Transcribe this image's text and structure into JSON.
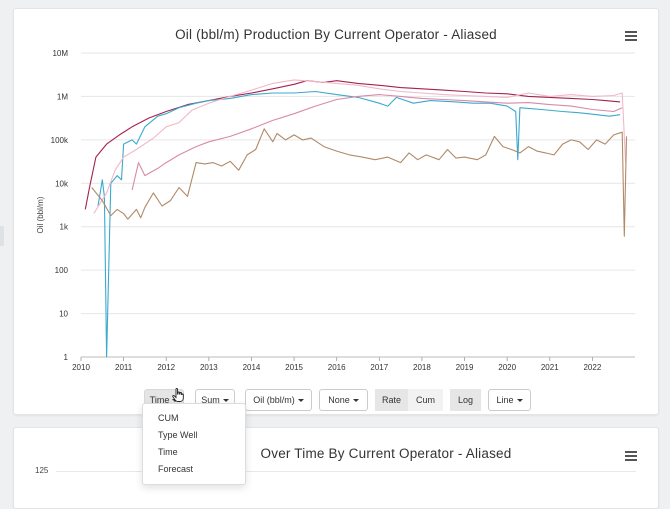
{
  "chart1": {
    "title": "Oil (bbl/m) Production By Current Operator - Aliased",
    "chart_data": {
      "type": "line",
      "title": "Oil (bbl/m) Production By Current Operator - Aliased",
      "ylabel": "Oil (bbl/m)",
      "xlabel": "",
      "yscale": "log",
      "ylim": [
        1,
        10000000
      ],
      "xlim": [
        2010,
        2023
      ],
      "y_ticks": [
        "1",
        "10",
        "100",
        "1k",
        "10k",
        "100k",
        "1M",
        "10M"
      ],
      "x_ticks": [
        "2010",
        "2011",
        "2012",
        "2013",
        "2014",
        "2015",
        "2016",
        "2017",
        "2018",
        "2019",
        "2020",
        "2021",
        "2022"
      ],
      "grid": true,
      "legend": "none",
      "series": [
        {
          "color": "#a3234e",
          "points": [
            [
              2010.1,
              2500
            ],
            [
              2010.2,
              8000
            ],
            [
              2010.35,
              40000
            ],
            [
              2010.6,
              80000
            ],
            [
              2010.9,
              130000
            ],
            [
              2011.2,
              200000
            ],
            [
              2011.6,
              320000
            ],
            [
              2012.0,
              450000
            ],
            [
              2012.5,
              650000
            ],
            [
              2013.0,
              800000
            ],
            [
              2013.5,
              1000000
            ],
            [
              2014.0,
              1200000
            ],
            [
              2014.5,
              1500000
            ],
            [
              2015.0,
              1900000
            ],
            [
              2015.3,
              2300000
            ],
            [
              2015.7,
              2100000
            ],
            [
              2016.0,
              2300000
            ],
            [
              2016.5,
              2000000
            ],
            [
              2017.0,
              1800000
            ],
            [
              2017.5,
              1600000
            ],
            [
              2018.0,
              1500000
            ],
            [
              2018.5,
              1400000
            ],
            [
              2019.0,
              1300000
            ],
            [
              2019.5,
              1200000
            ],
            [
              2020.0,
              1150000
            ],
            [
              2020.5,
              1000000
            ],
            [
              2021.0,
              950000
            ],
            [
              2021.5,
              900000
            ],
            [
              2022.0,
              850000
            ],
            [
              2022.3,
              800000
            ],
            [
              2022.65,
              750000
            ]
          ]
        },
        {
          "color": "#3ba9cc",
          "points": [
            [
              2010.4,
              3000
            ],
            [
              2010.5,
              12000
            ],
            [
              2010.55,
              5000
            ],
            [
              2010.6,
              1
            ],
            [
              2010.7,
              10000
            ],
            [
              2010.85,
              15000
            ],
            [
              2010.95,
              12000
            ],
            [
              2011.0,
              80000
            ],
            [
              2011.2,
              100000
            ],
            [
              2011.3,
              80000
            ],
            [
              2011.5,
              200000
            ],
            [
              2011.8,
              350000
            ],
            [
              2012.0,
              400000
            ],
            [
              2012.3,
              550000
            ],
            [
              2012.7,
              700000
            ],
            [
              2013.0,
              800000
            ],
            [
              2013.5,
              900000
            ],
            [
              2014.0,
              1100000
            ],
            [
              2014.5,
              1200000
            ],
            [
              2015.0,
              1200000
            ],
            [
              2015.5,
              1300000
            ],
            [
              2016.0,
              1100000
            ],
            [
              2016.5,
              950000
            ],
            [
              2017.0,
              700000
            ],
            [
              2017.2,
              600000
            ],
            [
              2017.4,
              950000
            ],
            [
              2017.8,
              700000
            ],
            [
              2018.2,
              800000
            ],
            [
              2018.8,
              750000
            ],
            [
              2019.2,
              700000
            ],
            [
              2019.6,
              700000
            ],
            [
              2020.0,
              600000
            ],
            [
              2020.2,
              450000
            ],
            [
              2020.25,
              35000
            ],
            [
              2020.3,
              550000
            ],
            [
              2020.8,
              500000
            ],
            [
              2021.3,
              450000
            ],
            [
              2021.7,
              420000
            ],
            [
              2022.0,
              390000
            ],
            [
              2022.4,
              350000
            ],
            [
              2022.65,
              380000
            ]
          ]
        },
        {
          "color": "#f1b8c8",
          "points": [
            [
              2010.3,
              2000
            ],
            [
              2010.6,
              6000
            ],
            [
              2010.8,
              20000
            ],
            [
              2011.0,
              40000
            ],
            [
              2011.3,
              60000
            ],
            [
              2011.7,
              110000
            ],
            [
              2012.0,
              200000
            ],
            [
              2012.3,
              250000
            ],
            [
              2012.6,
              480000
            ],
            [
              2013.0,
              700000
            ],
            [
              2013.5,
              1000000
            ],
            [
              2014.0,
              1400000
            ],
            [
              2014.5,
              2000000
            ],
            [
              2015.0,
              2400000
            ],
            [
              2015.5,
              2200000
            ],
            [
              2016.0,
              2000000
            ],
            [
              2016.5,
              1800000
            ],
            [
              2017.0,
              1500000
            ],
            [
              2017.5,
              1300000
            ],
            [
              2018.0,
              1200000
            ],
            [
              2018.5,
              1100000
            ],
            [
              2019.0,
              1050000
            ],
            [
              2019.5,
              1000000
            ],
            [
              2020.0,
              950000
            ],
            [
              2020.5,
              1200000
            ],
            [
              2021.0,
              1000000
            ],
            [
              2021.5,
              1100000
            ],
            [
              2022.0,
              1000000
            ],
            [
              2022.5,
              1050000
            ],
            [
              2022.7,
              1200000
            ],
            [
              2022.78,
              30000
            ]
          ]
        },
        {
          "color": "#d88aa8",
          "points": [
            [
              2011.2,
              7000
            ],
            [
              2011.35,
              30000
            ],
            [
              2011.5,
              15000
            ],
            [
              2011.8,
              22000
            ],
            [
              2012.0,
              30000
            ],
            [
              2012.3,
              45000
            ],
            [
              2012.7,
              70000
            ],
            [
              2013.0,
              90000
            ],
            [
              2013.5,
              120000
            ],
            [
              2014.0,
              180000
            ],
            [
              2014.5,
              280000
            ],
            [
              2015.0,
              400000
            ],
            [
              2015.5,
              600000
            ],
            [
              2016.0,
              850000
            ],
            [
              2016.5,
              1000000
            ],
            [
              2017.0,
              1100000
            ],
            [
              2017.5,
              1000000
            ],
            [
              2018.0,
              900000
            ],
            [
              2018.5,
              850000
            ],
            [
              2019.0,
              800000
            ],
            [
              2019.5,
              750000
            ],
            [
              2020.0,
              700000
            ],
            [
              2020.5,
              720000
            ],
            [
              2021.0,
              650000
            ],
            [
              2021.5,
              600000
            ],
            [
              2022.0,
              500000
            ],
            [
              2022.5,
              450000
            ],
            [
              2022.7,
              550000
            ]
          ]
        },
        {
          "color": "#b08a68",
          "points": [
            [
              2010.25,
              8000
            ],
            [
              2010.5,
              4000
            ],
            [
              2010.7,
              1800
            ],
            [
              2010.85,
              2500
            ],
            [
              2011.0,
              2000
            ],
            [
              2011.1,
              1500
            ],
            [
              2011.3,
              2500
            ],
            [
              2011.4,
              1600
            ],
            [
              2011.5,
              2800
            ],
            [
              2011.7,
              6000
            ],
            [
              2011.9,
              3000
            ],
            [
              2012.1,
              4000
            ],
            [
              2012.3,
              8000
            ],
            [
              2012.5,
              5000
            ],
            [
              2012.7,
              30000
            ],
            [
              2012.9,
              28000
            ],
            [
              2013.1,
              30000
            ],
            [
              2013.3,
              25000
            ],
            [
              2013.5,
              32000
            ],
            [
              2013.7,
              20000
            ],
            [
              2013.9,
              45000
            ],
            [
              2014.1,
              60000
            ],
            [
              2014.3,
              180000
            ],
            [
              2014.5,
              90000
            ],
            [
              2014.6,
              140000
            ],
            [
              2014.8,
              100000
            ],
            [
              2015.0,
              130000
            ],
            [
              2015.2,
              100000
            ],
            [
              2015.4,
              110000
            ],
            [
              2015.7,
              70000
            ],
            [
              2016.0,
              55000
            ],
            [
              2016.3,
              45000
            ],
            [
              2016.6,
              40000
            ],
            [
              2016.9,
              35000
            ],
            [
              2017.2,
              40000
            ],
            [
              2017.5,
              30000
            ],
            [
              2017.7,
              50000
            ],
            [
              2017.9,
              35000
            ],
            [
              2018.1,
              45000
            ],
            [
              2018.4,
              35000
            ],
            [
              2018.6,
              60000
            ],
            [
              2018.8,
              38000
            ],
            [
              2019.0,
              40000
            ],
            [
              2019.3,
              35000
            ],
            [
              2019.5,
              45000
            ],
            [
              2019.7,
              120000
            ],
            [
              2019.9,
              70000
            ],
            [
              2020.1,
              60000
            ],
            [
              2020.3,
              50000
            ],
            [
              2020.5,
              70000
            ],
            [
              2020.7,
              55000
            ],
            [
              2020.9,
              50000
            ],
            [
              2021.1,
              45000
            ],
            [
              2021.3,
              80000
            ],
            [
              2021.5,
              100000
            ],
            [
              2021.7,
              90000
            ],
            [
              2021.9,
              60000
            ],
            [
              2022.1,
              100000
            ],
            [
              2022.3,
              80000
            ],
            [
              2022.5,
              130000
            ],
            [
              2022.7,
              150000
            ],
            [
              2022.75,
              600
            ],
            [
              2022.8,
              120000
            ]
          ]
        }
      ]
    }
  },
  "controls": {
    "time": "Time",
    "sum": "Sum",
    "metric": "Oil (bbl/m)",
    "none": "None",
    "rate": "Rate",
    "cum": "Cum",
    "log": "Log",
    "line": "Line"
  },
  "dropdown": {
    "items": [
      "CUM",
      "Type Well",
      "Time",
      "Forecast"
    ]
  },
  "chart2": {
    "title": "Over Time By Current Operator - Aliased",
    "y_tick": "125"
  },
  "icons": {
    "menu": "hamburger-menu-icon",
    "cursor": "hand-pointer-icon"
  }
}
